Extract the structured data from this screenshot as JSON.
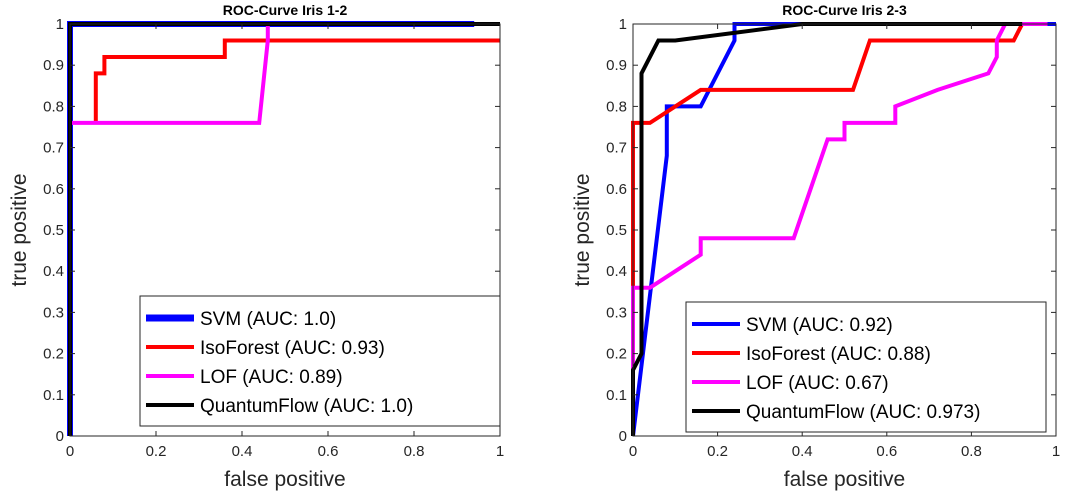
{
  "chart_data": [
    {
      "type": "line",
      "title": "ROC-Curve Iris 1-2",
      "xlabel": "false positive",
      "ylabel": "true positive",
      "xlim": [
        0,
        1
      ],
      "ylim": [
        0,
        1
      ],
      "xticks": [
        0,
        0.2,
        0.4,
        0.6,
        0.8,
        1
      ],
      "xtick_labels": [
        "0",
        "0.2",
        "0.4",
        "0.6",
        "0.8",
        "1"
      ],
      "yticks": [
        0,
        0.1,
        0.2,
        0.3,
        0.4,
        0.5,
        0.6,
        0.7,
        0.8,
        0.9,
        1
      ],
      "ytick_labels": [
        "0",
        "0.1",
        "0.2",
        "0.3",
        "0.4",
        "0.5",
        "0.6",
        "0.7",
        "0.8",
        "0.9",
        "1"
      ],
      "legend_position": "bottom-right",
      "series": [
        {
          "name": "SVM (AUC: 1.0)",
          "color": "#0000ff",
          "thick": true,
          "x": [
            0,
            0,
            0.94
          ],
          "y": [
            0,
            1,
            1
          ]
        },
        {
          "name": "IsoForest (AUC: 0.93)",
          "color": "#ff0000",
          "x": [
            0.06,
            0.06,
            0.06,
            0.06,
            0.08,
            0.08,
            0.36,
            0.36,
            1.0
          ],
          "y": [
            0.76,
            0.76,
            0.88,
            0.88,
            0.88,
            0.92,
            0.92,
            0.96,
            0.96
          ]
        },
        {
          "name": "LOF (AUC: 0.89)",
          "color": "#ff00ff",
          "x": [
            0.0,
            0.44,
            0.46,
            0.46
          ],
          "y": [
            0.76,
            0.76,
            0.96,
            1.0
          ]
        },
        {
          "name": "QuantumFlow (AUC: 1.0)",
          "color": "#000000",
          "x": [
            0.0,
            0.0,
            1.0
          ],
          "y": [
            0.0,
            1.0,
            1.0
          ]
        }
      ]
    },
    {
      "type": "line",
      "title": "ROC-Curve Iris 2-3",
      "xlabel": "false positive",
      "ylabel": "true positive",
      "xlim": [
        0,
        1
      ],
      "ylim": [
        0,
        1
      ],
      "xticks": [
        0,
        0.2,
        0.4,
        0.6,
        0.8,
        1
      ],
      "xtick_labels": [
        "0",
        "0.2",
        "0.4",
        "0.6",
        "0.8",
        "1"
      ],
      "yticks": [
        0,
        0.1,
        0.2,
        0.3,
        0.4,
        0.5,
        0.6,
        0.7,
        0.8,
        0.9,
        1
      ],
      "ytick_labels": [
        "0",
        "0.1",
        "0.2",
        "0.3",
        "0.4",
        "0.5",
        "0.6",
        "0.7",
        "0.8",
        "0.9",
        "1"
      ],
      "legend_position": "bottom-right",
      "series": [
        {
          "name": "SVM (AUC: 0.92)",
          "color": "#0000ff",
          "x": [
            0.0,
            0.08,
            0.08,
            0.08,
            0.16,
            0.24,
            0.24,
            1.0
          ],
          "y": [
            0.0,
            0.68,
            0.76,
            0.8,
            0.8,
            0.96,
            1.0,
            1.0
          ]
        },
        {
          "name": "IsoForest (AUC: 0.88)",
          "color": "#ff0000",
          "x": [
            0.0,
            0.0,
            0.0,
            0.04,
            0.16,
            0.52,
            0.56,
            0.9,
            0.92,
            0.92,
            0.94
          ],
          "y": [
            0.0,
            0.68,
            0.76,
            0.76,
            0.84,
            0.84,
            0.96,
            0.96,
            1.0,
            1.0,
            1.0
          ]
        },
        {
          "name": "LOF (AUC: 0.67)",
          "color": "#ff00ff",
          "x": [
            0.0,
            0.0,
            0.04,
            0.16,
            0.16,
            0.38,
            0.46,
            0.5,
            0.5,
            0.62,
            0.62,
            0.72,
            0.84,
            0.86,
            0.86,
            0.88,
            0.98
          ],
          "y": [
            0.16,
            0.36,
            0.36,
            0.44,
            0.48,
            0.48,
            0.72,
            0.72,
            0.76,
            0.76,
            0.8,
            0.84,
            0.88,
            0.92,
            0.96,
            1.0,
            1.0
          ]
        },
        {
          "name": "QuantumFlow (AUC: 0.973)",
          "color": "#000000",
          "x": [
            0.0,
            0.0,
            0.02,
            0.02,
            0.06,
            0.1,
            0.4,
            0.92
          ],
          "y": [
            0.0,
            0.16,
            0.2,
            0.88,
            0.96,
            0.96,
            1.0,
            1.0
          ]
        }
      ]
    }
  ]
}
